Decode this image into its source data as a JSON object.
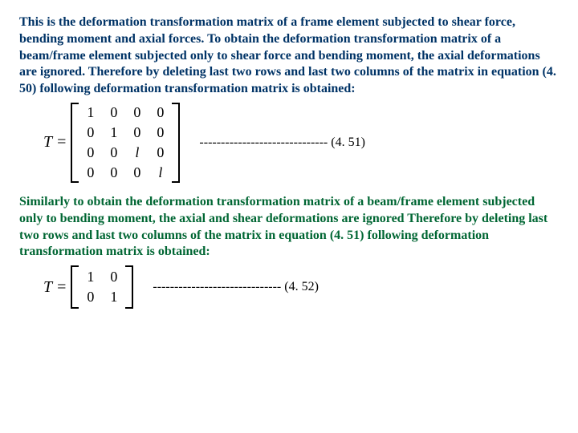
{
  "para1": "This is the deformation transformation matrix of a frame element subjected to shear force, bending moment and axial forces.\nTo obtain the deformation transformation matrix of a beam/frame element subjected only to shear force and bending moment, the axial deformations are ignored. Therefore by deleting last two rows and last two columns of the matrix in equation (4. 50) following deformation transformation matrix is obtained:",
  "matrix1": {
    "label": "T",
    "eq": "=",
    "rows": [
      [
        "1",
        "0",
        "0",
        "0"
      ],
      [
        "0",
        "1",
        "0",
        "0"
      ],
      [
        "0",
        "0",
        "l",
        "0"
      ],
      [
        "0",
        "0",
        "0",
        "l"
      ]
    ],
    "dashes": "------------------------------ (4. 51)",
    "bracket_height": 96
  },
  "para2": "Similarly to obtain the deformation transformation matrix of a beam/frame element subjected only to bending moment, the axial and shear deformations are ignored Therefore by deleting last two rows and last two columns of the matrix in equation (4. 51) following deformation transformation matrix is obtained:",
  "matrix2": {
    "label": "T",
    "eq": "=",
    "rows": [
      [
        "1",
        "0"
      ],
      [
        "0",
        "1"
      ]
    ],
    "dashes": "------------------------------ (4. 52)",
    "bracket_height": 50
  },
  "colors": {
    "para1": "#003366",
    "para2": "#006633",
    "bg": "#ffffff",
    "text": "#000000"
  },
  "fontsize": {
    "body": 16,
    "matrix_label": 20,
    "matrix_cell": 18
  }
}
